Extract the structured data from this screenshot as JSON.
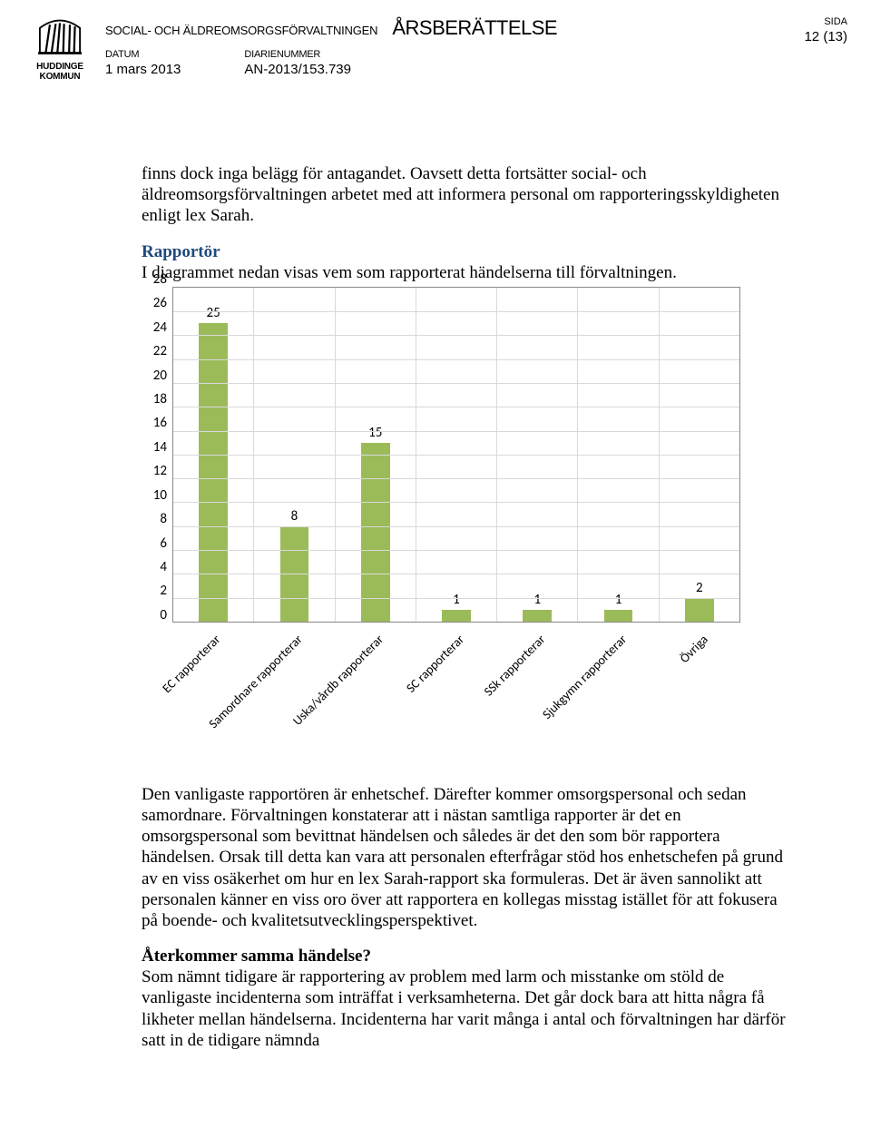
{
  "header": {
    "department": "SOCIAL- OCH ÄLDREOMSORGSFÖRVALTNINGEN",
    "title": "ÅRSBERÄTTELSE",
    "datum_label": "DATUM",
    "datum_value": "1 mars 2013",
    "diarie_label": "DIARIENUMMER",
    "diarie_value": "AN-2013/153.739",
    "sida_label": "SIDA",
    "sida_value": "12 (13)",
    "logo_line1": "HUDDINGE",
    "logo_line2": "KOMMUN"
  },
  "text": {
    "p1": "finns dock inga belägg för antagandet. Oavsett detta fortsätter social- och äldreomsorgsförvaltningen arbetet med att informera personal om rapporteringsskyldigheten enligt lex Sarah.",
    "subhead1": "Rapportör",
    "p2": "I diagrammet nedan visas vem som rapporterat händelserna till förvaltningen.",
    "p3": "Den vanligaste rapportören är enhetschef. Därefter kommer omsorgspersonal och sedan samordnare. Förvaltningen konstaterar att i nästan samtliga rapporter är det en omsorgspersonal som bevittnat händelsen och således är det den som bör rapportera händelsen. Orsak till detta kan vara att personalen efterfrågar stöd hos enhetschefen på grund av en viss osäkerhet om hur en lex Sarah-rapport ska formuleras. Det är även sannolikt att personalen känner en viss oro över att rapportera en kollegas misstag istället för att fokusera på boende- och kvalitetsutvecklingsperspektivet.",
    "subhead2": "Återkommer samma händelse?",
    "p4": "Som nämnt tidigare är rapportering av problem med larm och misstanke om stöld de vanligaste incidenterna som inträffat i verksamheterna. Det går dock bara att hitta några få likheter mellan händelserna. Incidenterna har varit många i antal och förvaltningen har därför satt in de tidigare nämnda"
  },
  "chart": {
    "type": "bar",
    "ylim": [
      0,
      28
    ],
    "ytick_step": 2,
    "yticks": [
      28,
      26,
      24,
      22,
      20,
      18,
      16,
      14,
      12,
      10,
      8,
      6,
      4,
      2,
      0
    ],
    "categories": [
      "EC rapporterar",
      "Samordnare rapporterar",
      "Uska/vårdb rapporterar",
      "SC rapporterar",
      "SSk rapporterar",
      "Sjukgymn rapporterar",
      "Övriga"
    ],
    "values": [
      25,
      8,
      15,
      1,
      1,
      1,
      2
    ],
    "bar_color": "#9bbb59",
    "grid_color": "#d9d9d9",
    "border_color": "#888888",
    "background_color": "#ffffff",
    "label_fontsize": 15,
    "xlabel_fontsize": 14,
    "bar_width_pct": 36
  }
}
